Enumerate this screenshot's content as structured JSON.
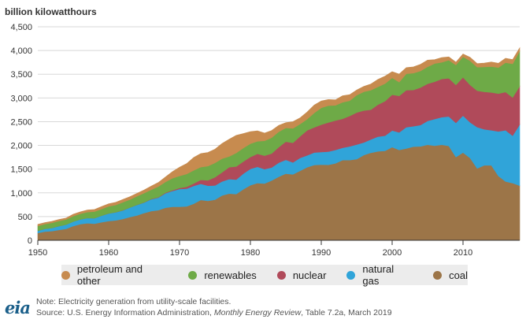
{
  "chart_data": {
    "type": "area",
    "stacked": true,
    "ylabel": "billion kilowatthours",
    "xlabel": "",
    "ylim": [
      0,
      4500
    ],
    "xlim": [
      1950,
      2018
    ],
    "yticks": [
      "0",
      "500",
      "1,000",
      "1,500",
      "2,000",
      "2,500",
      "3,000",
      "3,500",
      "4,000",
      "4,500"
    ],
    "ytick_values": [
      0,
      500,
      1000,
      1500,
      2000,
      2500,
      3000,
      3500,
      4000,
      4500
    ],
    "xticks": [
      "1950",
      "1960",
      "1970",
      "1980",
      "1990",
      "2000",
      "2010"
    ],
    "xtick_values": [
      1950,
      1960,
      1970,
      1980,
      1990,
      2000,
      2010
    ],
    "grid": true,
    "legend_position": "bottom",
    "x": [
      1950,
      1951,
      1952,
      1953,
      1954,
      1955,
      1956,
      1957,
      1958,
      1959,
      1960,
      1961,
      1962,
      1963,
      1964,
      1965,
      1966,
      1967,
      1968,
      1969,
      1970,
      1971,
      1972,
      1973,
      1974,
      1975,
      1976,
      1977,
      1978,
      1979,
      1980,
      1981,
      1982,
      1983,
      1984,
      1985,
      1986,
      1987,
      1988,
      1989,
      1990,
      1991,
      1992,
      1993,
      1994,
      1995,
      1996,
      1997,
      1998,
      1999,
      2000,
      2001,
      2002,
      2003,
      2004,
      2005,
      2006,
      2007,
      2008,
      2009,
      2010,
      2011,
      2012,
      2013,
      2014,
      2015,
      2016,
      2017,
      2018
    ],
    "series": [
      {
        "name": "coal",
        "color": "#9c7548",
        "values": [
          155,
          185,
          195,
          220,
          240,
          300,
          340,
          360,
          350,
          380,
          405,
          420,
          450,
          490,
          525,
          575,
          615,
          635,
          685,
          705,
          705,
          715,
          770,
          850,
          830,
          855,
          945,
          985,
          975,
          1075,
          1160,
          1205,
          1195,
          1260,
          1340,
          1405,
          1390,
          1465,
          1540,
          1585,
          1595,
          1590,
          1620,
          1690,
          1690,
          1710,
          1795,
          1845,
          1875,
          1885,
          1965,
          1905,
          1935,
          1975,
          1980,
          2015,
          1995,
          2015,
          1990,
          1755,
          1850,
          1735,
          1515,
          1580,
          1580,
          1355,
          1240,
          1205,
          1150
        ]
      },
      {
        "name": "natural gas",
        "color": "#30a4d9",
        "values": [
          45,
          55,
          65,
          80,
          90,
          95,
          100,
          110,
          115,
          140,
          160,
          170,
          180,
          200,
          220,
          220,
          250,
          265,
          305,
          335,
          375,
          375,
          375,
          340,
          320,
          300,
          295,
          305,
          305,
          330,
          345,
          345,
          305,
          275,
          295,
          290,
          250,
          270,
          250,
          265,
          265,
          280,
          285,
          260,
          290,
          310,
          265,
          280,
          310,
          320,
          350,
          370,
          450,
          430,
          450,
          500,
          560,
          580,
          620,
          720,
          780,
          750,
          870,
          760,
          740,
          940,
          1080,
          1000,
          1290
        ]
      },
      {
        "name": "nuclear",
        "color": "#b04a5a",
        "values": [
          0,
          0,
          0,
          0,
          0,
          0,
          0,
          0,
          0,
          0,
          1,
          2,
          2,
          3,
          3,
          4,
          6,
          8,
          13,
          14,
          22,
          38,
          54,
          83,
          114,
          173,
          191,
          251,
          276,
          255,
          251,
          273,
          283,
          294,
          328,
          384,
          414,
          455,
          527,
          529,
          577,
          613,
          619,
          610,
          640,
          673,
          675,
          628,
          674,
          728,
          754,
          769,
          780,
          764,
          789,
          782,
          787,
          806,
          806,
          799,
          807,
          790,
          769,
          789,
          797,
          797,
          805,
          805,
          807
        ]
      },
      {
        "name": "renewables",
        "color": "#6eaa47",
        "values": [
          100,
          102,
          108,
          108,
          108,
          115,
          120,
          125,
          140,
          140,
          148,
          152,
          170,
          166,
          180,
          195,
          195,
          225,
          225,
          255,
          255,
          270,
          275,
          270,
          300,
          305,
          290,
          225,
          285,
          285,
          280,
          265,
          315,
          335,
          325,
          290,
          305,
          260,
          235,
          305,
          355,
          355,
          320,
          350,
          320,
          365,
          395,
          410,
          375,
          370,
          355,
          290,
          345,
          355,
          350,
          360,
          385,
          350,
          380,
          420,
          430,
          510,
          495,
          525,
          545,
          550,
          620,
          710,
          740
        ]
      },
      {
        "name": "petroleum and other",
        "color": "#c78b4f",
        "values": [
          35,
          30,
          32,
          32,
          30,
          40,
          40,
          45,
          45,
          50,
          55,
          56,
          58,
          61,
          62,
          66,
          74,
          84,
          104,
          137,
          184,
          218,
          272,
          286,
          288,
          287,
          320,
          364,
          371,
          305,
          254,
          219,
          162,
          150,
          133,
          110,
          142,
          128,
          151,
          166,
          145,
          129,
          116,
          136,
          129,
          109,
          114,
          132,
          157,
          157,
          130,
          170,
          130,
          130,
          140,
          140,
          80,
          100,
          70,
          60,
          60,
          70,
          75,
          80,
          95,
          90,
          90,
          90,
          70
        ]
      }
    ]
  },
  "legend_order": [
    "petroleum and other",
    "renewables",
    "nuclear",
    "natural gas",
    "coal"
  ],
  "legend": {
    "items": [
      {
        "label": "petroleum and other",
        "color": "#c78b4f"
      },
      {
        "label": "renewables",
        "color": "#6eaa47"
      },
      {
        "label": "nuclear",
        "color": "#b04a5a"
      },
      {
        "label": "natural gas",
        "color": "#30a4d9"
      },
      {
        "label": "coal",
        "color": "#9c7548"
      }
    ]
  },
  "logo": {
    "text": "eia"
  },
  "footer": {
    "note": "Note: Electricity generation from utility-scale facilities.",
    "source_prefix": "Source: U.S. Energy Information Administration, ",
    "source_title": "Monthly Energy Review",
    "source_suffix": ", Table 7.2a, March 2019"
  }
}
